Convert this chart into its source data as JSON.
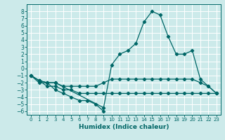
{
  "xlabel": "Humidex (Indice chaleur)",
  "bg_color": "#cceaea",
  "grid_color": "#ffffff",
  "line_color": "#006666",
  "xlim": [
    -0.5,
    23.5
  ],
  "ylim": [
    -6.5,
    9.0
  ],
  "xticks": [
    0,
    1,
    2,
    3,
    4,
    5,
    6,
    7,
    8,
    9,
    10,
    11,
    12,
    13,
    14,
    15,
    16,
    17,
    18,
    19,
    20,
    21,
    22,
    23
  ],
  "yticks": [
    -6,
    -5,
    -4,
    -3,
    -2,
    -1,
    0,
    1,
    2,
    3,
    4,
    5,
    6,
    7,
    8
  ],
  "series": [
    {
      "x": [
        0,
        1,
        2,
        3,
        4,
        5,
        6,
        7,
        8,
        9
      ],
      "y": [
        -1,
        -2,
        -2,
        -3,
        -3.5,
        -4,
        -4.5,
        -4.5,
        -5,
        -6
      ]
    },
    {
      "x": [
        0,
        1,
        2,
        3,
        4,
        5,
        6,
        7,
        8,
        9,
        10,
        11,
        12,
        13,
        14,
        15,
        16,
        17,
        18,
        19,
        20,
        21,
        22,
        23
      ],
      "y": [
        -1,
        -1.7,
        -2.5,
        -2.5,
        -3,
        -3,
        -3.5,
        -3.5,
        -3.5,
        -3.5,
        -3.5,
        -3.5,
        -3.5,
        -3.5,
        -3.5,
        -3.5,
        -3.5,
        -3.5,
        -3.5,
        -3.5,
        -3.5,
        -3.5,
        -3.5,
        -3.5
      ]
    },
    {
      "x": [
        0,
        1,
        2,
        3,
        4,
        5,
        6,
        7,
        8,
        9,
        10,
        11,
        12,
        13,
        14,
        15,
        16,
        17,
        18,
        19,
        20,
        21,
        22,
        23
      ],
      "y": [
        -1,
        -1.7,
        -2,
        -2,
        -2.5,
        -2.5,
        -2.5,
        -2.5,
        -2.5,
        -2,
        -1.5,
        -1.5,
        -1.5,
        -1.5,
        -1.5,
        -1.5,
        -1.5,
        -1.5,
        -1.5,
        -1.5,
        -1.5,
        -2,
        -2.5,
        -3.5
      ]
    },
    {
      "x": [
        0,
        1,
        2,
        3,
        9,
        10,
        11,
        12,
        13,
        14,
        15,
        16,
        17,
        18,
        19,
        20,
        21,
        22,
        23
      ],
      "y": [
        -1,
        -1.7,
        -2,
        -2,
        -5.5,
        0.5,
        2,
        2.5,
        3.5,
        6.5,
        8,
        7.5,
        4.5,
        2,
        2,
        2.5,
        -1.5,
        -2.5,
        -3.5
      ]
    }
  ]
}
